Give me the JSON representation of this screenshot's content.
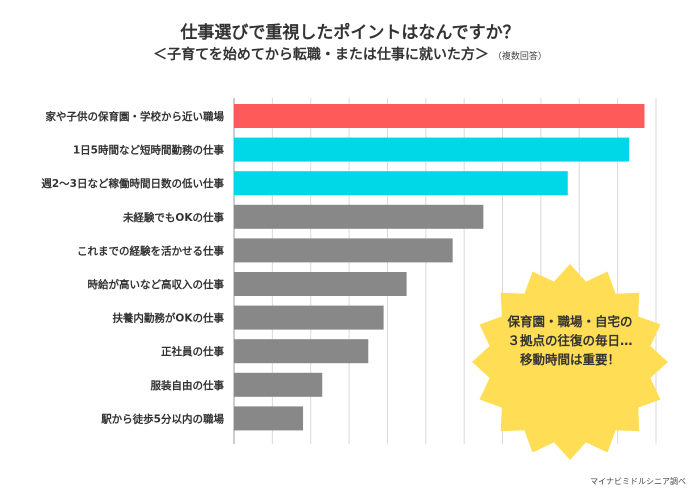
{
  "header": {
    "title": "仕事選びで重視したポイントはなんですか？",
    "subtitle": "＜子育てを始めてから転職・または仕事に就いた方＞",
    "note": "（複数回答）"
  },
  "callout": {
    "lines": [
      "保育園・職場・自宅の",
      "３拠点の往復の毎日…",
      "移動時間は重要！"
    ]
  },
  "source": "マイナビミドルシニア調べ",
  "colors": {
    "highlight": "#ff5a5a",
    "secondary": "#00d8e8",
    "default": "#888888",
    "callout": "#ffde55"
  },
  "chart_data": {
    "type": "bar",
    "orientation": "horizontal",
    "categories": [
      "家や子供の保育園・学校から近い職場",
      "1日5時間など短時間勤務の仕事",
      "週2〜3日など稼働時間日数の低い仕事",
      "未経験でもOKの仕事",
      "これまでの経験を活かせる仕事",
      "時給が高いなど高収入の仕事",
      "扶養内勤務がOKの仕事",
      "正社員の仕事",
      "服装自由の仕事",
      "駅から徒歩5分以内の職場"
    ],
    "values": [
      53.5,
      51.5,
      43.5,
      32.5,
      28.5,
      22.5,
      19.5,
      17.5,
      11.5,
      9.0
    ],
    "bar_colors": [
      "highlight",
      "secondary",
      "secondary",
      "default",
      "default",
      "default",
      "default",
      "default",
      "default",
      "default"
    ],
    "xlim": [
      0,
      55
    ],
    "grid": true
  }
}
